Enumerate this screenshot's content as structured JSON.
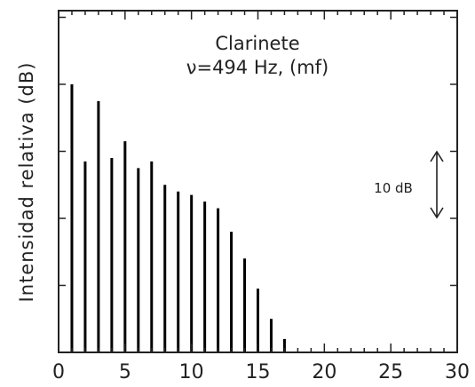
{
  "chart_data": {
    "type": "bar",
    "title": "Clarinete",
    "subtitle": "ν=494 Hz, (mf)",
    "ylabel": "Intensidad relativa  (dB)",
    "xlabel": "",
    "xlim": [
      0,
      30
    ],
    "x_ticks": [
      "0",
      "5",
      "10",
      "15",
      "20",
      "25",
      "30"
    ],
    "grid": false,
    "scale_bar": {
      "label": "10 dB",
      "value_db": 10
    },
    "harmonics": [
      1,
      2,
      3,
      4,
      5,
      6,
      7,
      8,
      9,
      10,
      11,
      12,
      13,
      14,
      15,
      16,
      17
    ],
    "values_db": [
      40,
      28.5,
      37.5,
      29,
      31.5,
      27.5,
      28.5,
      25,
      24,
      23.5,
      22.5,
      21.5,
      18,
      14,
      9.5,
      5,
      2
    ],
    "bar_color": "#000000",
    "frame_color": "#222222"
  }
}
